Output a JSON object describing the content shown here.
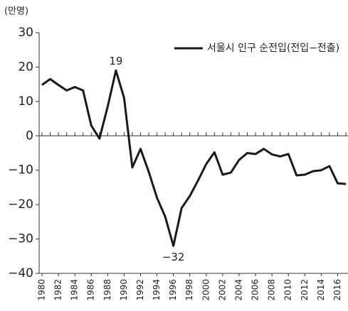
{
  "chart_data": {
    "type": "line",
    "y_label": "(만명)",
    "x": [
      1980,
      1981,
      1982,
      1983,
      1984,
      1985,
      1986,
      1987,
      1988,
      1989,
      1990,
      1991,
      1992,
      1993,
      1994,
      1995,
      1996,
      1997,
      1998,
      1999,
      2000,
      2001,
      2002,
      2003,
      2004,
      2005,
      2006,
      2007,
      2008,
      2009,
      2010,
      2011,
      2012,
      2013,
      2014,
      2015,
      2016,
      2017
    ],
    "series": [
      {
        "name": "서울시 인구 순전입(전입−전출)",
        "color": "#1a1a1a",
        "values": [
          14.8,
          16.5,
          14.8,
          13.2,
          14.2,
          13.2,
          3,
          -0.8,
          8.5,
          19,
          11,
          -9.2,
          -3.8,
          -10.5,
          -18,
          -23.5,
          -32,
          -21,
          -17.5,
          -13,
          -8.2,
          -4.8,
          -11.3,
          -10.7,
          -7,
          -5,
          -5.3,
          -3.8,
          -5.4,
          -6,
          -5.3,
          -11.5,
          -11.3,
          -10.3,
          -10,
          -8.8,
          -13.8,
          -14
        ]
      }
    ],
    "annotations": [
      {
        "x": 1989,
        "y": 19,
        "text": "19"
      },
      {
        "x": 1996,
        "y": -32,
        "text": "−32"
      }
    ],
    "xlim": [
      1980,
      2017
    ],
    "xticks": [
      1980,
      1982,
      1984,
      1986,
      1988,
      1990,
      1992,
      1994,
      1996,
      1998,
      2000,
      2002,
      2004,
      2006,
      2008,
      2010,
      2012,
      2014,
      2016
    ],
    "ylim": [
      -40,
      30
    ],
    "yticks": [
      30,
      20,
      10,
      0,
      {
        "value": -10,
        "label": "−10"
      },
      {
        "value": -20,
        "label": "−20"
      },
      {
        "value": -30,
        "label": "−30"
      },
      {
        "value": -40,
        "label": "−40"
      }
    ],
    "legend": "top-right"
  }
}
